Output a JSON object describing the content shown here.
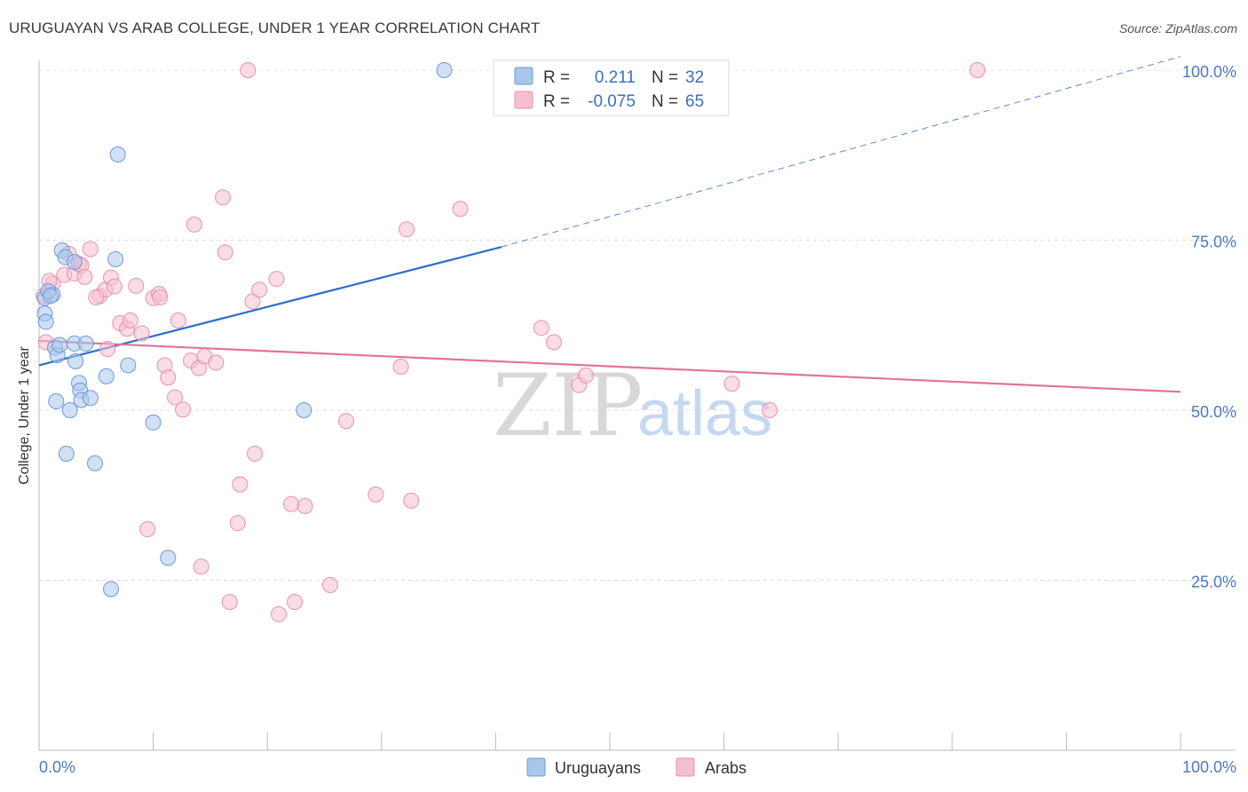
{
  "header": {
    "title": "URUGUAYAN VS ARAB COLLEGE, UNDER 1 YEAR CORRELATION CHART",
    "source": "Source: ZipAtlas.com"
  },
  "watermark": {
    "zip": "ZIP",
    "atlas": "atlas"
  },
  "stats": [
    {
      "r_label": "R =",
      "r_value": "0.211",
      "n_label": "N =",
      "n_value": "32",
      "color": "#a9c6ec",
      "stroke": "#6f98d6"
    },
    {
      "r_label": "R =",
      "r_value": "-0.075",
      "n_label": "N =",
      "n_value": "65",
      "color": "#f6bfd0",
      "stroke": "#e891ad"
    }
  ],
  "legend": [
    {
      "label": "Uruguayans",
      "color": "#a9c6ec",
      "stroke": "#6f98d6"
    },
    {
      "label": "Arabs",
      "color": "#f6bfd0",
      "stroke": "#e891ad"
    }
  ],
  "chart_data": {
    "type": "scatter",
    "title": "URUGUAYAN VS ARAB COLLEGE, UNDER 1 YEAR CORRELATION CHART",
    "xlabel": "",
    "ylabel": "College, Under 1 year",
    "xlim": [
      0,
      100
    ],
    "ylim": [
      2,
      102
    ],
    "x_tick_labels": [
      "0.0%",
      "100.0%"
    ],
    "y_ticks": [
      25,
      50,
      75,
      100
    ],
    "y_tick_labels": [
      "25.0%",
      "50.0%",
      "75.0%",
      "100.0%"
    ],
    "grid": true,
    "series": [
      {
        "name": "Uruguayans",
        "color": "#a9c6ec",
        "stroke": "#6f98d6",
        "line_color": "#2f6fcb",
        "trend": {
          "x0": 0,
          "y0": 56.6,
          "x1": 40.5,
          "y1": 74.0,
          "dashed_to_x": 100,
          "dashed_to_y": 102
        },
        "points": [
          [
            0.5,
            66.5
          ],
          [
            0.5,
            64.2
          ],
          [
            0.6,
            63.0
          ],
          [
            1.2,
            67.0
          ],
          [
            1.4,
            59.2
          ],
          [
            1.5,
            51.3
          ],
          [
            1.6,
            58.1
          ],
          [
            1.8,
            59.6
          ],
          [
            2.0,
            73.5
          ],
          [
            2.3,
            72.5
          ],
          [
            2.4,
            43.6
          ],
          [
            2.7,
            50.0
          ],
          [
            3.1,
            71.8
          ],
          [
            3.1,
            59.8
          ],
          [
            3.2,
            57.2
          ],
          [
            3.5,
            54.0
          ],
          [
            3.6,
            52.9
          ],
          [
            3.7,
            51.5
          ],
          [
            4.1,
            59.8
          ],
          [
            4.5,
            51.8
          ],
          [
            4.9,
            42.2
          ],
          [
            5.9,
            55.0
          ],
          [
            6.3,
            23.7
          ],
          [
            6.7,
            72.2
          ],
          [
            6.9,
            87.6
          ],
          [
            7.8,
            56.6
          ],
          [
            10.0,
            48.2
          ],
          [
            11.3,
            28.3
          ],
          [
            23.2,
            50.0
          ],
          [
            35.5,
            100.0
          ],
          [
            0.8,
            67.5
          ],
          [
            1.0,
            66.8
          ]
        ]
      },
      {
        "name": "Arabs",
        "color": "#f6bfd0",
        "stroke": "#e891ad",
        "line_color": "#e07499",
        "trend": {
          "x0": 0,
          "y0": 60.2,
          "x1": 100,
          "y1": 52.7
        },
        "points": [
          [
            0.4,
            66.8
          ],
          [
            0.6,
            60.0
          ],
          [
            1.2,
            68.6
          ],
          [
            2.2,
            69.9
          ],
          [
            2.6,
            73.0
          ],
          [
            3.1,
            70.1
          ],
          [
            3.5,
            71.5
          ],
          [
            3.7,
            71.3
          ],
          [
            4.0,
            69.6
          ],
          [
            4.5,
            73.7
          ],
          [
            5.3,
            66.8
          ],
          [
            5.8,
            67.7
          ],
          [
            6.0,
            59.0
          ],
          [
            6.3,
            69.5
          ],
          [
            6.6,
            68.2
          ],
          [
            7.1,
            62.8
          ],
          [
            7.7,
            62.0
          ],
          [
            8.0,
            63.2
          ],
          [
            8.5,
            68.3
          ],
          [
            9.0,
            61.3
          ],
          [
            9.5,
            32.5
          ],
          [
            10.0,
            66.5
          ],
          [
            10.5,
            67.1
          ],
          [
            10.6,
            66.6
          ],
          [
            11.0,
            56.6
          ],
          [
            11.3,
            54.8
          ],
          [
            11.9,
            51.9
          ],
          [
            12.2,
            63.2
          ],
          [
            12.6,
            50.1
          ],
          [
            13.3,
            57.3
          ],
          [
            13.6,
            77.3
          ],
          [
            14.0,
            56.2
          ],
          [
            14.2,
            27.0
          ],
          [
            14.5,
            57.9
          ],
          [
            15.5,
            57.0
          ],
          [
            16.1,
            81.3
          ],
          [
            16.3,
            73.2
          ],
          [
            16.7,
            21.8
          ],
          [
            17.4,
            33.4
          ],
          [
            17.6,
            39.1
          ],
          [
            18.3,
            100.0
          ],
          [
            18.7,
            66.0
          ],
          [
            18.9,
            43.6
          ],
          [
            19.3,
            67.7
          ],
          [
            20.8,
            69.3
          ],
          [
            21.0,
            20.0
          ],
          [
            22.1,
            36.2
          ],
          [
            22.4,
            21.8
          ],
          [
            23.3,
            35.9
          ],
          [
            25.5,
            24.3
          ],
          [
            26.9,
            48.4
          ],
          [
            29.5,
            37.6
          ],
          [
            31.7,
            56.4
          ],
          [
            32.2,
            76.6
          ],
          [
            32.6,
            36.7
          ],
          [
            36.9,
            79.6
          ],
          [
            44.0,
            62.1
          ],
          [
            45.1,
            60.0
          ],
          [
            47.3,
            53.7
          ],
          [
            47.9,
            55.1
          ],
          [
            60.7,
            53.9
          ],
          [
            64.0,
            50.0
          ],
          [
            82.2,
            100.0
          ],
          [
            0.9,
            69.0
          ],
          [
            5.0,
            66.6
          ]
        ]
      }
    ]
  }
}
